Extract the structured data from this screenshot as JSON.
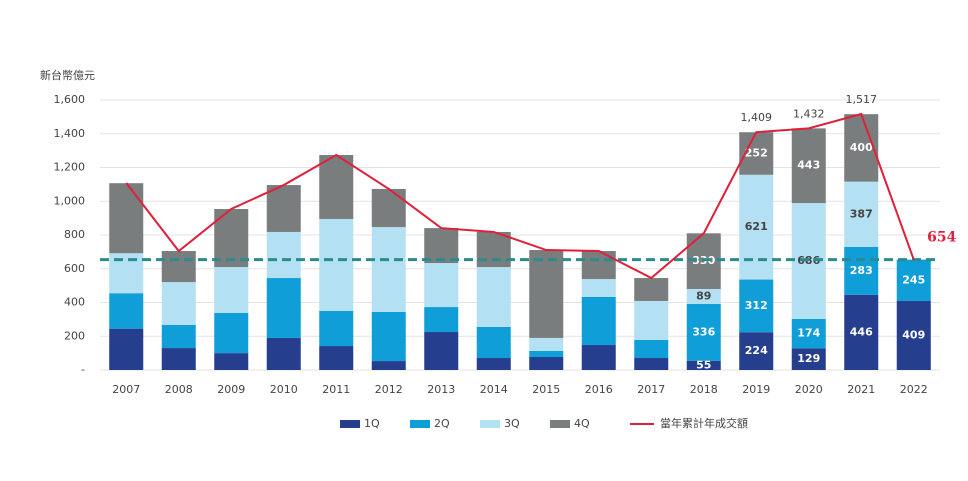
{
  "chart_data": {
    "type": "stacked_bar_line",
    "y_axis_title": "新台幣億元",
    "categories": [
      "2007",
      "2008",
      "2009",
      "2010",
      "2011",
      "2012",
      "2013",
      "2014",
      "2015",
      "2016",
      "2017",
      "2018",
      "2019",
      "2020",
      "2021",
      "2022"
    ],
    "ylim": [
      0,
      1600
    ],
    "yticks": [
      {
        "value": 0,
        "label": "-"
      },
      200,
      400,
      600,
      800,
      {
        "value": 1000,
        "label": "1,000"
      },
      {
        "value": 1200,
        "label": "1,200"
      },
      {
        "value": 1400,
        "label": "1,400"
      },
      {
        "value": 1600,
        "label": "1,600"
      }
    ],
    "grid": true,
    "series": [
      {
        "name": "1Q",
        "color": "#253f8e",
        "label_color": "#ffffff",
        "values": [
          245,
          130,
          100,
          190,
          142,
          53,
          225,
          71,
          77,
          148,
          71,
          55,
          224,
          129,
          446,
          409
        ],
        "value_labels": [
          null,
          null,
          null,
          null,
          null,
          null,
          null,
          null,
          null,
          null,
          null,
          "55",
          "224",
          "129",
          "446",
          "409"
        ]
      },
      {
        "name": "2Q",
        "color": "#0f9ed8",
        "label_color": "#ffffff",
        "values": [
          210,
          137,
          238,
          355,
          208,
          291,
          148,
          184,
          36,
          285,
          107,
          336,
          312,
          174,
          283,
          245
        ],
        "value_labels": [
          null,
          null,
          null,
          null,
          null,
          null,
          null,
          null,
          null,
          null,
          null,
          "336",
          "312",
          "174",
          "283",
          "245"
        ]
      },
      {
        "name": "3Q",
        "color": "#b3e0f2",
        "label_color": "#444444",
        "values": [
          237,
          254,
          272,
          273,
          545,
          503,
          261,
          355,
          77,
          106,
          231,
          89,
          621,
          686,
          387,
          null
        ],
        "value_labels": [
          null,
          null,
          null,
          null,
          null,
          null,
          null,
          null,
          null,
          null,
          null,
          "89",
          "621",
          "686",
          "387",
          null
        ]
      },
      {
        "name": "4Q",
        "color": "#7a7d7d",
        "label_color": "#ffffff",
        "values": [
          415,
          184,
          344,
          278,
          379,
          226,
          207,
          208,
          521,
          166,
          136,
          330,
          252,
          443,
          400,
          null
        ],
        "value_labels": [
          null,
          null,
          null,
          null,
          null,
          null,
          null,
          null,
          null,
          null,
          null,
          "330",
          "252",
          "443",
          "400",
          null
        ]
      }
    ],
    "line": {
      "name": "當年累計年成交額",
      "color": "#e0203a",
      "values": [
        1108,
        705,
        954,
        1096,
        1274,
        1073,
        841,
        818,
        711,
        705,
        545,
        810,
        1409,
        1432,
        1517,
        654
      ],
      "value_labels": [
        null,
        null,
        null,
        null,
        null,
        null,
        null,
        null,
        null,
        null,
        null,
        null,
        "1,409",
        "1,432",
        "1,517",
        "654"
      ]
    },
    "reference_line": {
      "value": 654,
      "color": "#2a8c8c",
      "style": "dashed"
    }
  }
}
